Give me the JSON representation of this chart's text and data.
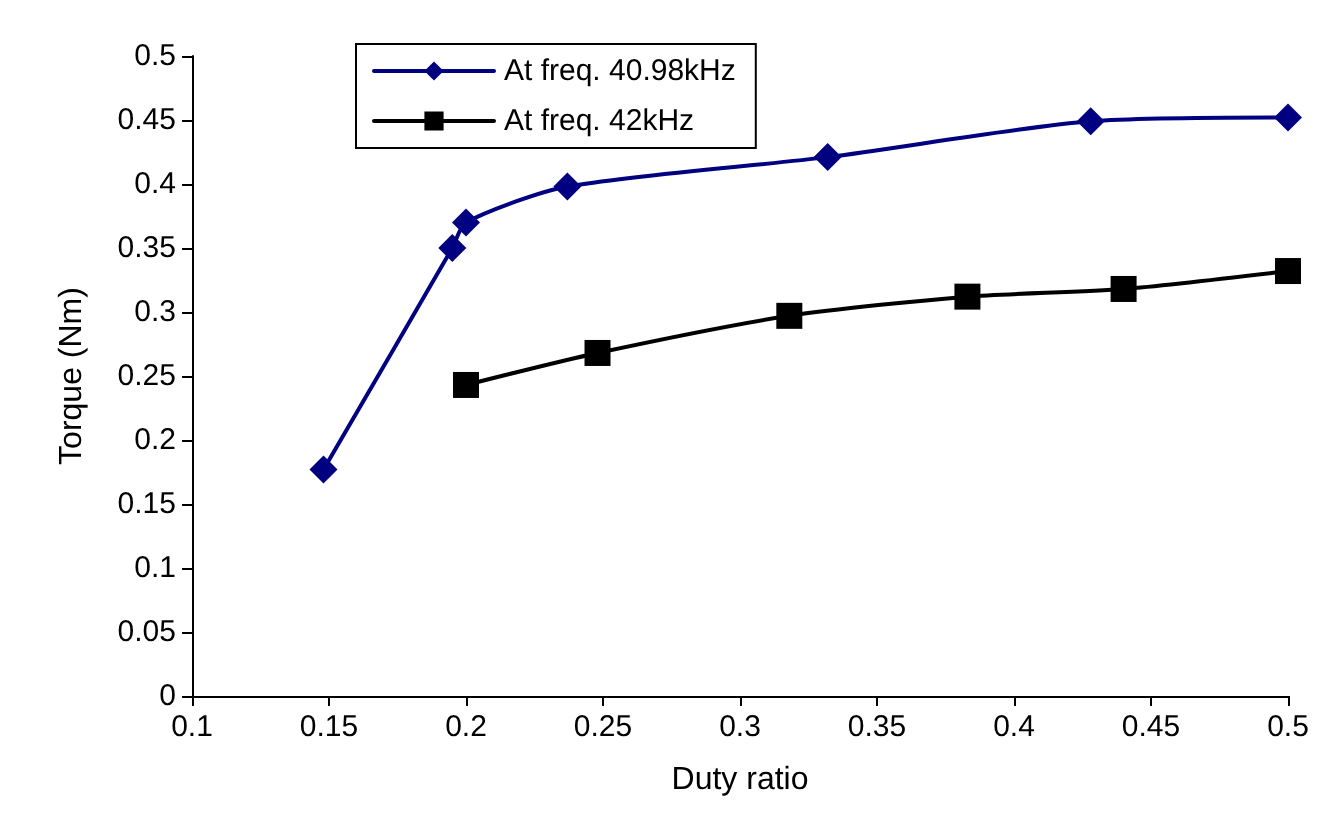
{
  "chart_data": {
    "type": "line",
    "xlabel": "Duty ratio",
    "ylabel": "Torque (Nm)",
    "xlim": [
      0.1,
      0.5
    ],
    "xticks": [
      0.1,
      0.15,
      0.2,
      0.25,
      0.3,
      0.35,
      0.4,
      0.45,
      0.5
    ],
    "ylim": [
      0,
      0.5
    ],
    "yticks": [
      0,
      0.05,
      0.1,
      0.15,
      0.2,
      0.25,
      0.3,
      0.35,
      0.4,
      0.45,
      0.5
    ],
    "grid": false,
    "legend": "top left",
    "line_style": "solid",
    "series": [
      {
        "name": "At freq. 40.98kHz",
        "color": "#000080",
        "marker": "diamond",
        "x": [
          0.148,
          0.195,
          0.2,
          0.237,
          0.332,
          0.428,
          0.5
        ],
        "values": [
          0.177,
          0.35,
          0.37,
          0.398,
          0.421,
          0.449,
          0.452
        ]
      },
      {
        "name": "At freq. 42kHz",
        "color": "#000000",
        "marker": "square",
        "x": [
          0.2,
          0.248,
          0.318,
          0.383,
          0.44,
          0.5
        ],
        "values": [
          0.243,
          0.268,
          0.297,
          0.312,
          0.318,
          0.332
        ]
      }
    ]
  }
}
